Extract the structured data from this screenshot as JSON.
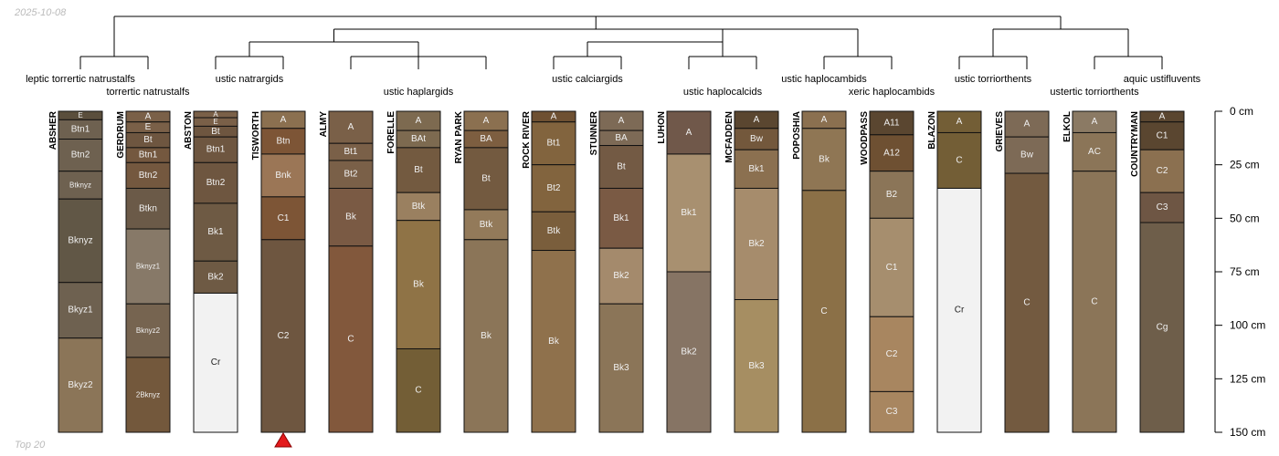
{
  "header": {
    "date": "2025-10-08"
  },
  "footer": {
    "label": "Top 20"
  },
  "chart_data": {
    "type": "soil-profile-sketch",
    "depth_unit": "cm",
    "depth_range": [
      0,
      150
    ],
    "depth_axis_ticks": [
      {
        "value": 0,
        "label": "0 cm"
      },
      {
        "value": 25,
        "label": "25 cm"
      },
      {
        "value": 50,
        "label": "50 cm"
      },
      {
        "value": 75,
        "label": "75 cm"
      },
      {
        "value": 100,
        "label": "100 cm"
      },
      {
        "value": 125,
        "label": "125 cm"
      },
      {
        "value": 150,
        "label": "150 cm"
      }
    ],
    "marker": {
      "profile": "TISWORTH",
      "shape": "triangle",
      "color": "#e41a1c"
    },
    "dendrogram_groups": [
      {
        "label": "leptic torrertic natrustalfs",
        "profiles": [
          "ABSHER"
        ]
      },
      {
        "label": "torrertic natrustalfs",
        "profiles": [
          "GERDRUM"
        ]
      },
      {
        "label": "ustic natrargids",
        "profiles": [
          "ABSTON",
          "TISWORTH"
        ]
      },
      {
        "label": "ustic haplargids",
        "profiles": [
          "ALMY",
          "FORELLE",
          "RYAN PARK"
        ]
      },
      {
        "label": "ustic calciargids",
        "profiles": [
          "ROCK RIVER",
          "STUNNER"
        ]
      },
      {
        "label": "ustic haplocalcids",
        "profiles": [
          "LUHON",
          "MCFADDEN"
        ]
      },
      {
        "label": "ustic haplocambids",
        "profiles": [
          "POPOSHIA"
        ]
      },
      {
        "label": "xeric haplocambids",
        "profiles": [
          "WOODPASS"
        ]
      },
      {
        "label": "ustic torriorthents",
        "profiles": [
          "BLAZON",
          "GRIEVES"
        ]
      },
      {
        "label": "ustertic torriorthents",
        "profiles": [
          "ELKOL"
        ]
      },
      {
        "label": "aquic ustifluvents",
        "profiles": [
          "COUNTRYMAN"
        ]
      }
    ],
    "profiles": [
      {
        "name": "ABSHER",
        "horizons": [
          {
            "name": "E",
            "top": 0,
            "bottom": 4,
            "color": "#5a4e3c"
          },
          {
            "name": "Btn1",
            "top": 4,
            "bottom": 13,
            "color": "#6e6150"
          },
          {
            "name": "Btn2",
            "top": 13,
            "bottom": 28,
            "color": "#6e6150"
          },
          {
            "name": "Btknyz",
            "top": 28,
            "bottom": 41,
            "color": "#6e6150"
          },
          {
            "name": "Bknyz",
            "top": 41,
            "bottom": 80,
            "color": "#615746"
          },
          {
            "name": "Bkyz1",
            "top": 80,
            "bottom": 106,
            "color": "#6e6150"
          },
          {
            "name": "Bkyz2",
            "top": 106,
            "bottom": 150,
            "color": "#8b7558"
          }
        ]
      },
      {
        "name": "GERDRUM",
        "horizons": [
          {
            "name": "A",
            "top": 0,
            "bottom": 5,
            "color": "#7a6048"
          },
          {
            "name": "E",
            "top": 5,
            "bottom": 10,
            "color": "#7a6048"
          },
          {
            "name": "Bt",
            "top": 10,
            "bottom": 17,
            "color": "#6e5640"
          },
          {
            "name": "Btn1",
            "top": 17,
            "bottom": 24,
            "color": "#74583f"
          },
          {
            "name": "Btn2",
            "top": 24,
            "bottom": 36,
            "color": "#74583f"
          },
          {
            "name": "Btkn",
            "top": 36,
            "bottom": 55,
            "color": "#6b5a48"
          },
          {
            "name": "Bknyz1",
            "top": 55,
            "bottom": 90,
            "color": "#877968"
          },
          {
            "name": "Bknyz2",
            "top": 90,
            "bottom": 115,
            "color": "#766450"
          },
          {
            "name": "2Bknyz",
            "top": 115,
            "bottom": 150,
            "color": "#73583c"
          }
        ]
      },
      {
        "name": "ABSTON",
        "horizons": [
          {
            "name": "A",
            "top": 0,
            "bottom": 3,
            "color": "#7a6048"
          },
          {
            "name": "E",
            "top": 3,
            "bottom": 7,
            "color": "#7a6048"
          },
          {
            "name": "Bt",
            "top": 7,
            "bottom": 12,
            "color": "#6e5640"
          },
          {
            "name": "Btn1",
            "top": 12,
            "bottom": 24,
            "color": "#6e5640"
          },
          {
            "name": "Btn2",
            "top": 24,
            "bottom": 43,
            "color": "#6e5640"
          },
          {
            "name": "Bk1",
            "top": 43,
            "bottom": 70,
            "color": "#6e5a44"
          },
          {
            "name": "Bk2",
            "top": 70,
            "bottom": 85,
            "color": "#6e5a44"
          },
          {
            "name": "Cr",
            "top": 85,
            "bottom": 150,
            "color": "#f2f2f2"
          }
        ]
      },
      {
        "name": "TISWORTH",
        "horizons": [
          {
            "name": "A",
            "top": 0,
            "bottom": 8,
            "color": "#8b7050"
          },
          {
            "name": "Btn",
            "top": 8,
            "bottom": 20,
            "color": "#7d5536"
          },
          {
            "name": "Bnk",
            "top": 20,
            "bottom": 40,
            "color": "#9b7656"
          },
          {
            "name": "C1",
            "top": 40,
            "bottom": 60,
            "color": "#7d5536"
          },
          {
            "name": "C2",
            "top": 60,
            "bottom": 150,
            "color": "#6e5640"
          }
        ]
      },
      {
        "name": "ALMY",
        "horizons": [
          {
            "name": "A",
            "top": 0,
            "bottom": 15,
            "color": "#7a6048"
          },
          {
            "name": "Bt1",
            "top": 15,
            "bottom": 23,
            "color": "#7a6048"
          },
          {
            "name": "Bt2",
            "top": 23,
            "bottom": 36,
            "color": "#7a6048"
          },
          {
            "name": "Bk",
            "top": 36,
            "bottom": 63,
            "color": "#7a5a44"
          },
          {
            "name": "C",
            "top": 63,
            "bottom": 150,
            "color": "#82583c"
          }
        ]
      },
      {
        "name": "FORELLE",
        "horizons": [
          {
            "name": "A",
            "top": 0,
            "bottom": 9,
            "color": "#7d6a50"
          },
          {
            "name": "BAt",
            "top": 9,
            "bottom": 17,
            "color": "#7d6a50"
          },
          {
            "name": "Bt",
            "top": 17,
            "bottom": 38,
            "color": "#735a40"
          },
          {
            "name": "Btk",
            "top": 38,
            "bottom": 51,
            "color": "#9a8060"
          },
          {
            "name": "Bk",
            "top": 51,
            "bottom": 111,
            "color": "#8f7346"
          },
          {
            "name": "C",
            "top": 111,
            "bottom": 150,
            "color": "#735e36"
          }
        ]
      },
      {
        "name": "RYAN PARK",
        "horizons": [
          {
            "name": "A",
            "top": 0,
            "bottom": 9,
            "color": "#8b7050"
          },
          {
            "name": "BA",
            "top": 9,
            "bottom": 17,
            "color": "#7d5e40"
          },
          {
            "name": "Bt",
            "top": 17,
            "bottom": 46,
            "color": "#735a40"
          },
          {
            "name": "Btk",
            "top": 46,
            "bottom": 60,
            "color": "#937a5a"
          },
          {
            "name": "Bk",
            "top": 60,
            "bottom": 150,
            "color": "#8b7558"
          }
        ]
      },
      {
        "name": "ROCK RIVER",
        "horizons": [
          {
            "name": "A",
            "top": 0,
            "bottom": 5,
            "color": "#6e5032"
          },
          {
            "name": "Bt1",
            "top": 5,
            "bottom": 25,
            "color": "#82643e"
          },
          {
            "name": "Bt2",
            "top": 25,
            "bottom": 47,
            "color": "#82643e"
          },
          {
            "name": "Btk",
            "top": 47,
            "bottom": 65,
            "color": "#7a5e3c"
          },
          {
            "name": "Bk",
            "top": 65,
            "bottom": 150,
            "color": "#8f714c"
          }
        ]
      },
      {
        "name": "STUNNER",
        "horizons": [
          {
            "name": "A",
            "top": 0,
            "bottom": 9,
            "color": "#7d6a56"
          },
          {
            "name": "BA",
            "top": 9,
            "bottom": 16,
            "color": "#7d6a56"
          },
          {
            "name": "Bt",
            "top": 16,
            "bottom": 36,
            "color": "#735a44"
          },
          {
            "name": "Bk1",
            "top": 36,
            "bottom": 64,
            "color": "#7a5a44"
          },
          {
            "name": "Bk2",
            "top": 64,
            "bottom": 90,
            "color": "#a48a6c"
          },
          {
            "name": "Bk3",
            "top": 90,
            "bottom": 150,
            "color": "#8b7558"
          }
        ]
      },
      {
        "name": "LUHON",
        "horizons": [
          {
            "name": "A",
            "top": 0,
            "bottom": 20,
            "color": "#70584a"
          },
          {
            "name": "Bk1",
            "top": 20,
            "bottom": 75,
            "color": "#a89070"
          },
          {
            "name": "Bk2",
            "top": 75,
            "bottom": 150,
            "color": "#867464"
          }
        ]
      },
      {
        "name": "MCFADDEN",
        "horizons": [
          {
            "name": "A",
            "top": 0,
            "bottom": 8,
            "color": "#5a4630"
          },
          {
            "name": "Bw",
            "top": 8,
            "bottom": 18,
            "color": "#73583c"
          },
          {
            "name": "Bk1",
            "top": 18,
            "bottom": 36,
            "color": "#8b7050"
          },
          {
            "name": "Bk2",
            "top": 36,
            "bottom": 88,
            "color": "#a68c6c"
          },
          {
            "name": "Bk3",
            "top": 88,
            "bottom": 150,
            "color": "#a68e62"
          }
        ]
      },
      {
        "name": "POPOSHIA",
        "horizons": [
          {
            "name": "A",
            "top": 0,
            "bottom": 8,
            "color": "#8b7050"
          },
          {
            "name": "Bk",
            "top": 8,
            "bottom": 37,
            "color": "#8f7654"
          },
          {
            "name": "C",
            "top": 37,
            "bottom": 150,
            "color": "#8b7047"
          }
        ]
      },
      {
        "name": "WOODPASS",
        "horizons": [
          {
            "name": "A11",
            "top": 0,
            "bottom": 11,
            "color": "#5a4630"
          },
          {
            "name": "A12",
            "top": 11,
            "bottom": 28,
            "color": "#6e5032"
          },
          {
            "name": "B2",
            "top": 28,
            "bottom": 50,
            "color": "#8b7558"
          },
          {
            "name": "C1",
            "top": 50,
            "bottom": 96,
            "color": "#a68e6e"
          },
          {
            "name": "C2",
            "top": 96,
            "bottom": 131,
            "color": "#a88660"
          },
          {
            "name": "C3",
            "top": 131,
            "bottom": 150,
            "color": "#a88660"
          }
        ]
      },
      {
        "name": "BLAZON",
        "horizons": [
          {
            "name": "A",
            "top": 0,
            "bottom": 10,
            "color": "#735e36"
          },
          {
            "name": "C",
            "top": 10,
            "bottom": 36,
            "color": "#735e36"
          },
          {
            "name": "Cr",
            "top": 36,
            "bottom": 150,
            "color": "#f2f2f2"
          }
        ]
      },
      {
        "name": "GRIEVES",
        "horizons": [
          {
            "name": "A",
            "top": 0,
            "bottom": 12,
            "color": "#7d6a56"
          },
          {
            "name": "Bw",
            "top": 12,
            "bottom": 29,
            "color": "#7d6a56"
          },
          {
            "name": "C",
            "top": 29,
            "bottom": 150,
            "color": "#735a40"
          }
        ]
      },
      {
        "name": "ELKOL",
        "horizons": [
          {
            "name": "A",
            "top": 0,
            "bottom": 10,
            "color": "#8b7a64"
          },
          {
            "name": "AC",
            "top": 10,
            "bottom": 28,
            "color": "#8b7558"
          },
          {
            "name": "C",
            "top": 28,
            "bottom": 150,
            "color": "#8b7558"
          }
        ]
      },
      {
        "name": "COUNTRYMAN",
        "horizons": [
          {
            "name": "A",
            "top": 0,
            "bottom": 5,
            "color": "#5a4630"
          },
          {
            "name": "C1",
            "top": 5,
            "bottom": 18,
            "color": "#5a4630"
          },
          {
            "name": "C2",
            "top": 18,
            "bottom": 38,
            "color": "#8b7050"
          },
          {
            "name": "C3",
            "top": 38,
            "bottom": 52,
            "color": "#6e5644"
          },
          {
            "name": "Cg",
            "top": 52,
            "bottom": 150,
            "color": "#6e5e4a"
          }
        ]
      }
    ]
  }
}
